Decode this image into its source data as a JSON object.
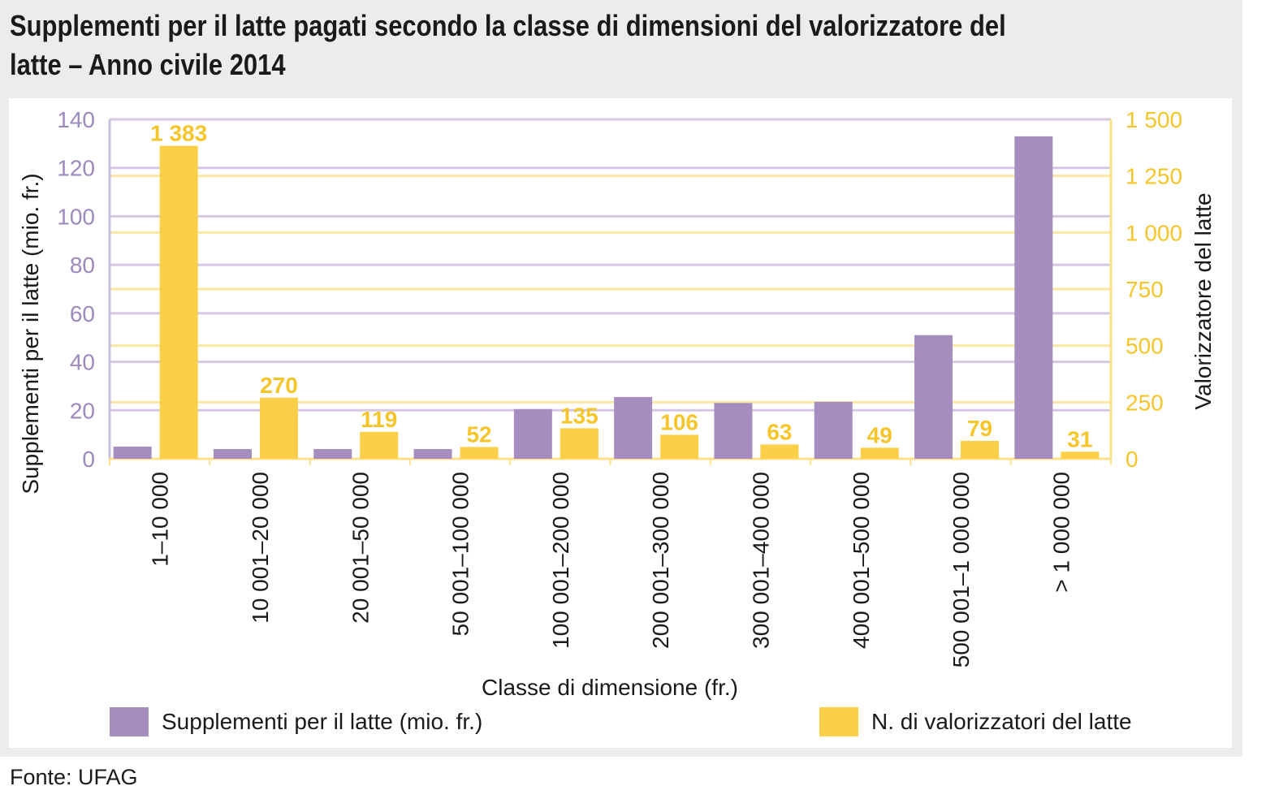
{
  "title": "Supplementi per il latte pagati secondo la classe di dimensioni del valorizzatore del latte – Anno civile 2014",
  "source": "Fonte: UFAG",
  "colors": {
    "purple": "#a58dbf",
    "yellow": "#fccf48",
    "purple_text": "#9c89bd",
    "yellow_text": "#f6c52a",
    "grid_purple": "#d4c8e3",
    "grid_yellow": "#fbe7a4",
    "axis": "#ffe08a",
    "axis_purple": "#cbbfdf"
  },
  "chart_data": {
    "type": "bar",
    "xlabel": "Classe di dimensione (fr.)",
    "ylabel_left": "Supplementi per il latte (mio. fr.)",
    "ylabel_right": "Valorizzatore del latte",
    "ylim_left": [
      0,
      140
    ],
    "ylim_right": [
      0,
      1500
    ],
    "left_ticks": [
      0,
      20,
      40,
      60,
      80,
      100,
      120,
      140
    ],
    "right_ticks": [
      0,
      250,
      500,
      750,
      1000,
      1250,
      1500
    ],
    "right_tick_labels": [
      "0",
      "250",
      "500",
      "750",
      "1 000",
      "1 250",
      "1 500"
    ],
    "categories": [
      "1–10 000",
      "10 001–20 000",
      "20 001–50 000",
      "50 001–100 000",
      "100 001–200 000",
      "200 001–300 000",
      "300 001–400 000",
      "400 001–500 000",
      "500 001–1 000 000",
      "> 1 000 000"
    ],
    "series": [
      {
        "name": "Supplementi per il latte (mio. fr.)",
        "axis": "left",
        "values": [
          5,
          4,
          4,
          4,
          20.5,
          25.5,
          23,
          23.5,
          51,
          133
        ]
      },
      {
        "name": "N. di valorizzatori del latte",
        "axis": "right",
        "values": [
          1383,
          270,
          119,
          52,
          135,
          106,
          63,
          49,
          79,
          31
        ],
        "labels": [
          "1 383",
          "270",
          "119",
          "52",
          "135",
          "106",
          "63",
          "49",
          "79",
          "31"
        ]
      }
    ],
    "legend": "bottom"
  }
}
